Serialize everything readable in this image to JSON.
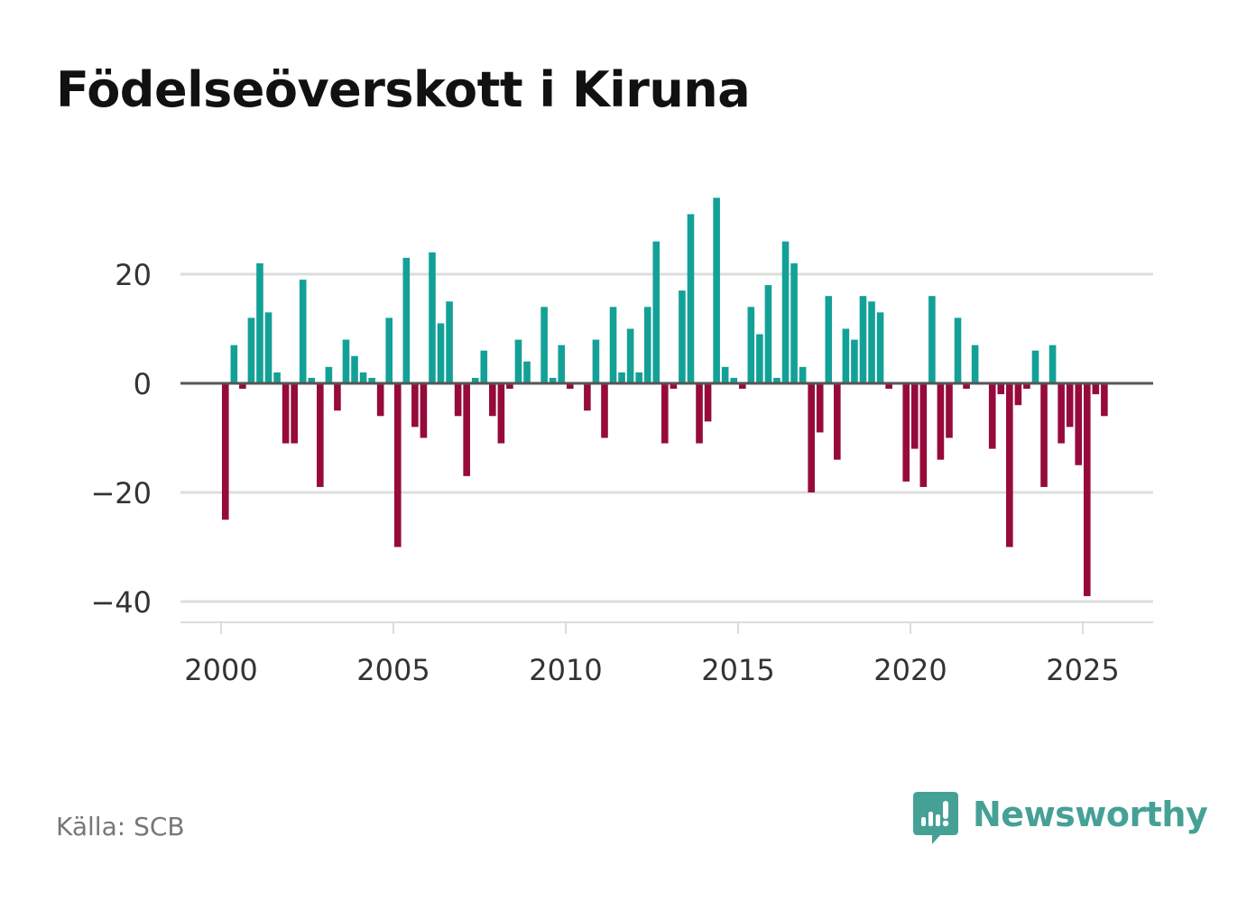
{
  "title": "Födelseöverskott i Kiruna",
  "source": "Källa: SCB",
  "brand": "Newsworthy",
  "colors": {
    "positive": "#13a197",
    "negative": "#960a3c",
    "grid": "#dddddd",
    "zero_line": "#555555",
    "tick_text": "#333333",
    "brand": "#45a196"
  },
  "chart_data": {
    "type": "bar",
    "title": "Födelseöverskott i Kiruna",
    "xlabel": "",
    "ylabel": "",
    "frequency": "quarterly",
    "start": "2000-Q1",
    "ylim": [
      -45,
      36
    ],
    "yticks": [
      20,
      0,
      -20,
      -40
    ],
    "ytick_labels": [
      "20",
      "0",
      "−20",
      "−40"
    ],
    "xticks": [
      2000,
      2005,
      2010,
      2015,
      2020,
      2025
    ],
    "xtick_labels": [
      "2000",
      "2005",
      "2010",
      "2015",
      "2020",
      "2025"
    ],
    "grid": true,
    "values": [
      -25,
      7,
      -1,
      12,
      22,
      13,
      2,
      -11,
      -11,
      19,
      1,
      -19,
      3,
      -5,
      8,
      5,
      2,
      1,
      -6,
      12,
      -30,
      23,
      -8,
      -10,
      24,
      11,
      15,
      -6,
      -17,
      1,
      6,
      -6,
      -11,
      -1,
      8,
      4,
      0,
      14,
      1,
      7,
      -1,
      0,
      -5,
      8,
      -10,
      14,
      2,
      10,
      2,
      14,
      26,
      -11,
      -1,
      17,
      31,
      -11,
      -7,
      34,
      3,
      1,
      -1,
      14,
      9,
      18,
      1,
      26,
      22,
      3,
      -20,
      -9,
      16,
      -14,
      10,
      8,
      16,
      15,
      13,
      -1,
      0,
      -18,
      -12,
      -19,
      16,
      -14,
      -10,
      12,
      -1,
      7,
      0,
      -12,
      -2,
      -30,
      -4,
      -1,
      6,
      -19,
      7,
      -11,
      -8,
      -15,
      -39,
      -2,
      -6
    ]
  }
}
